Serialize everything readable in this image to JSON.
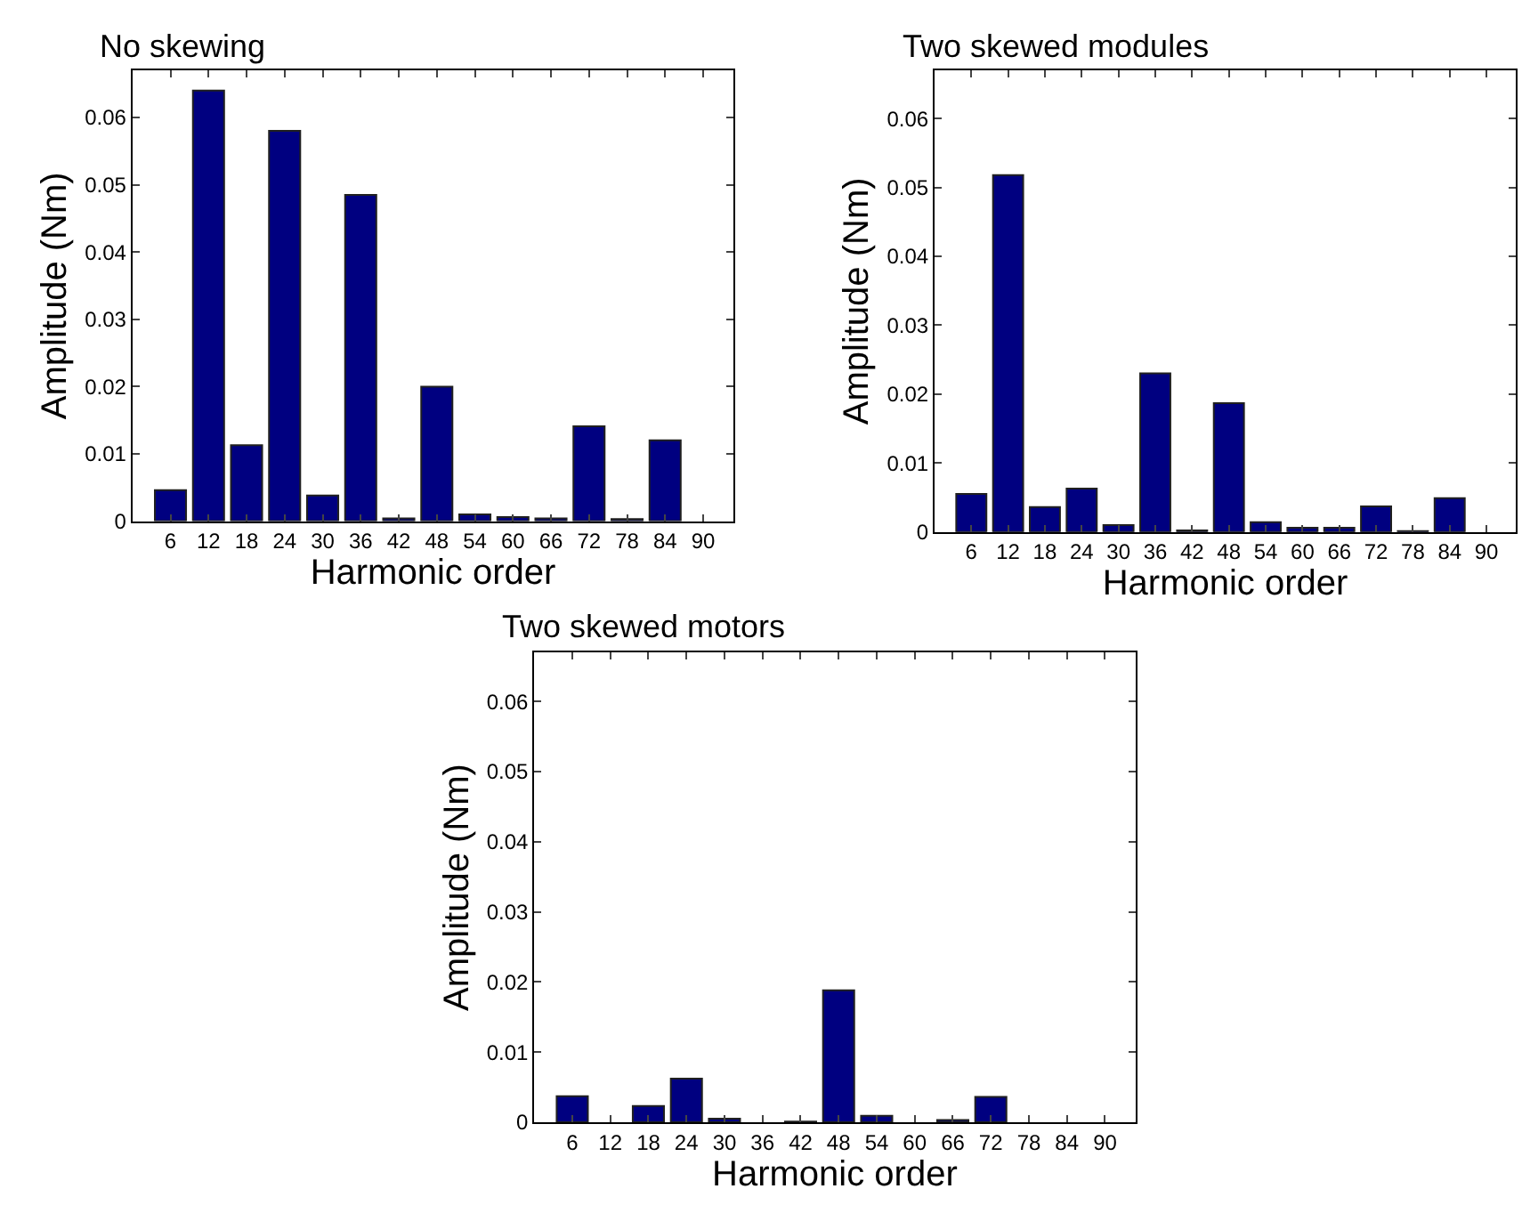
{
  "chart_data": [
    {
      "type": "bar",
      "title": "No skewing",
      "xlabel": "Harmonic order",
      "ylabel": "Amplitude (Nm)",
      "categories": [
        "6",
        "12",
        "18",
        "24",
        "30",
        "36",
        "42",
        "48",
        "54",
        "60",
        "66",
        "72",
        "78",
        "84",
        "90"
      ],
      "values": [
        0.0046,
        0.064,
        0.0113,
        0.058,
        0.0038,
        0.0485,
        0.0004,
        0.02,
        0.001,
        0.0006,
        0.0004,
        0.0141,
        0.0003,
        0.012,
        0
      ],
      "color": "#000080",
      "ylim": [
        0,
        0.067
      ],
      "yticks": [
        0,
        0.01,
        0.02,
        0.03,
        0.04,
        0.05,
        0.06
      ]
    },
    {
      "type": "bar",
      "title": "Two skewed modules",
      "xlabel": "Harmonic order",
      "ylabel": "Amplitude (Nm)",
      "categories": [
        "6",
        "12",
        "18",
        "24",
        "30",
        "36",
        "42",
        "48",
        "54",
        "60",
        "66",
        "72",
        "78",
        "84",
        "90"
      ],
      "values": [
        0.0055,
        0.0518,
        0.0036,
        0.0063,
        0.001,
        0.023,
        0.0002,
        0.0187,
        0.0014,
        0.0006,
        0.0006,
        0.0037,
        0.0001,
        0.0049,
        0
      ],
      "color": "#000080",
      "ylim": [
        0,
        0.067
      ],
      "yticks": [
        0,
        0.01,
        0.02,
        0.03,
        0.04,
        0.05,
        0.06
      ]
    },
    {
      "type": "bar",
      "title": "Two skewed motors",
      "xlabel": "Harmonic order",
      "ylabel": "Amplitude (Nm)",
      "categories": [
        "6",
        "12",
        "18",
        "24",
        "30",
        "36",
        "42",
        "48",
        "54",
        "60",
        "66",
        "72",
        "78",
        "84",
        "90"
      ],
      "values": [
        0.0037,
        0,
        0.0023,
        0.0062,
        0.0005,
        0,
        0.0001,
        0.0188,
        0.0009,
        0,
        0.0003,
        0.0036,
        0,
        0,
        0
      ],
      "color": "#000080",
      "ylim": [
        0,
        0.067
      ],
      "yticks": [
        0,
        0.01,
        0.02,
        0.03,
        0.04,
        0.05,
        0.06
      ]
    }
  ]
}
